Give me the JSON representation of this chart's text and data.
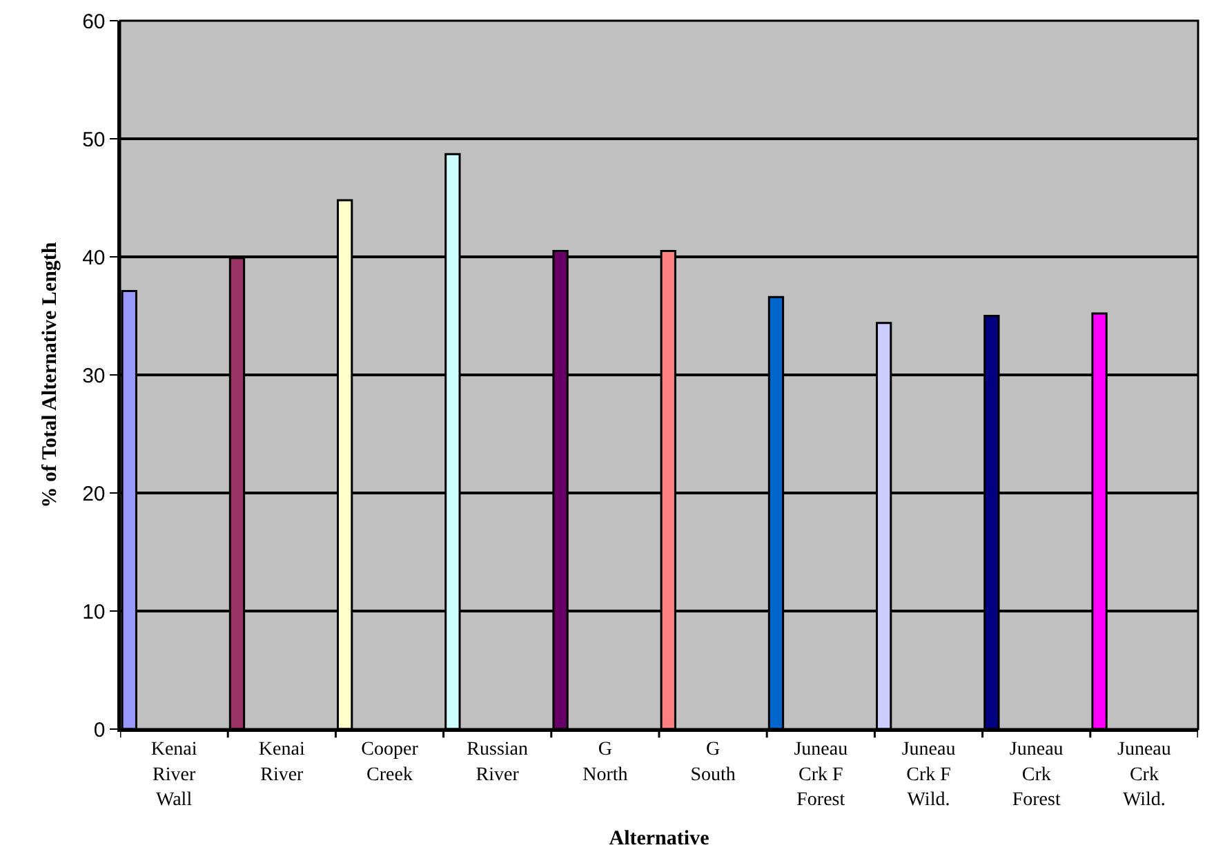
{
  "chart_data": {
    "type": "bar",
    "xlabel": "Alternative",
    "ylabel": "% of Total Alternative Length",
    "categories": [
      "Kenai River Wall",
      "Kenai River",
      "Cooper Creek",
      "Russian River",
      "G North",
      "G South",
      "Juneau Crk F Forest",
      "Juneau Crk F Wild.",
      "Juneau Crk Forest",
      "Juneau Crk Wild."
    ],
    "values": [
      37.1,
      39.9,
      44.8,
      48.7,
      40.5,
      40.5,
      36.6,
      34.4,
      35.0,
      35.2
    ],
    "colors": [
      "#9999ff",
      "#993366",
      "#ffffcc",
      "#ccffff",
      "#660066",
      "#ff8080",
      "#0066cc",
      "#ccccff",
      "#000080",
      "#ff00ff"
    ],
    "ylim": [
      0,
      60
    ],
    "yticks": [
      0,
      10,
      20,
      30,
      40,
      50,
      60
    ],
    "grid": "y"
  }
}
